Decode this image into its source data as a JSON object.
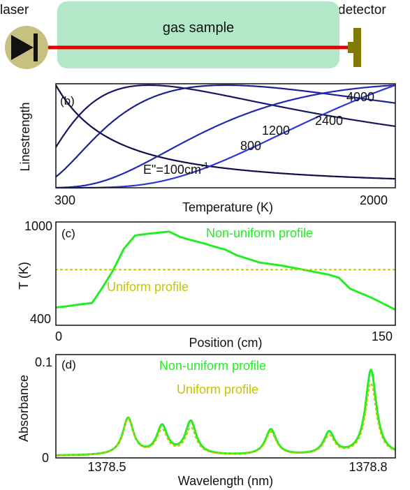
{
  "setup": {
    "laser_label": "laser",
    "detector_label": "detector",
    "sample_label": "gas sample",
    "colors": {
      "sample": "#b3e8c8",
      "beam": "#e00000",
      "laser_body": "#c8c080",
      "detector": "#7f7a00"
    }
  },
  "chart_data": [
    {
      "panel": "(b)",
      "type": "line",
      "xlabel": "Temperature (K)",
      "ylabel": "Linestrength",
      "xlim": [
        300,
        2000
      ],
      "x_tick_labels": [
        "300",
        "2000"
      ],
      "series_labels": [
        {
          "text": "E\"=100cm",
          "superscript": "-1"
        },
        {
          "text": "800"
        },
        {
          "text": "1200"
        },
        {
          "text": "2400"
        },
        {
          "text": "4000"
        }
      ],
      "series": [
        {
          "energy": 100,
          "color": "#0d0d4a"
        },
        {
          "energy": 800,
          "color": "#171760"
        },
        {
          "energy": 1200,
          "color": "#1c2090"
        },
        {
          "energy": 2400,
          "color": "#2328b0"
        },
        {
          "energy": 4000,
          "color": "#2a36d8"
        }
      ]
    },
    {
      "panel": "(c)",
      "type": "line",
      "xlabel": "Position (cm)",
      "ylabel": "T (K)",
      "xlim": [
        0,
        150
      ],
      "ylim": [
        400,
        1000
      ],
      "x_tick_labels": [
        "0",
        "150"
      ],
      "y_tick_labels": [
        "400",
        "1000"
      ],
      "series": [
        {
          "name": "Non-uniform profile",
          "color": "#22ee22",
          "style": "solid",
          "x": [
            0,
            5,
            10,
            16,
            20,
            25,
            30,
            35,
            40,
            45,
            50,
            55,
            60,
            66,
            70,
            75,
            80,
            90,
            100,
            110,
            120,
            125,
            130,
            140,
            150
          ],
          "y": [
            482,
            490,
            500,
            510,
            595,
            708,
            850,
            935,
            945,
            952,
            960,
            925,
            905,
            883,
            865,
            845,
            810,
            765,
            745,
            718,
            690,
            670,
            600,
            540,
            468
          ]
        },
        {
          "name": "Uniform profile",
          "color": "#c8c400",
          "style": "dotted",
          "x": [
            0,
            150
          ],
          "y": [
            720,
            720
          ]
        }
      ]
    },
    {
      "panel": "(d)",
      "type": "line",
      "xlabel": "Wavelength (nm)",
      "ylabel": "Absorbance",
      "xlim": [
        1378.43,
        1378.82
      ],
      "ylim": [
        0,
        0.1
      ],
      "x_tick_labels": [
        "1378.5",
        "1378.8"
      ],
      "y_tick_labels": [
        "0",
        "0.1"
      ],
      "lines": [
        1378.513,
        1378.552,
        1378.585,
        1378.677,
        1378.744,
        1378.792
      ],
      "series": [
        {
          "name": "Non-uniform profile",
          "color": "#22ee22",
          "style": "solid",
          "peaks": [
            0.04,
            0.033,
            0.037,
            0.028,
            0.026,
            0.09
          ]
        },
        {
          "name": "Uniform profile",
          "color": "#c8c400",
          "style": "dotted",
          "peaks": [
            0.039,
            0.028,
            0.03,
            0.025,
            0.022,
            0.076
          ]
        }
      ]
    }
  ]
}
